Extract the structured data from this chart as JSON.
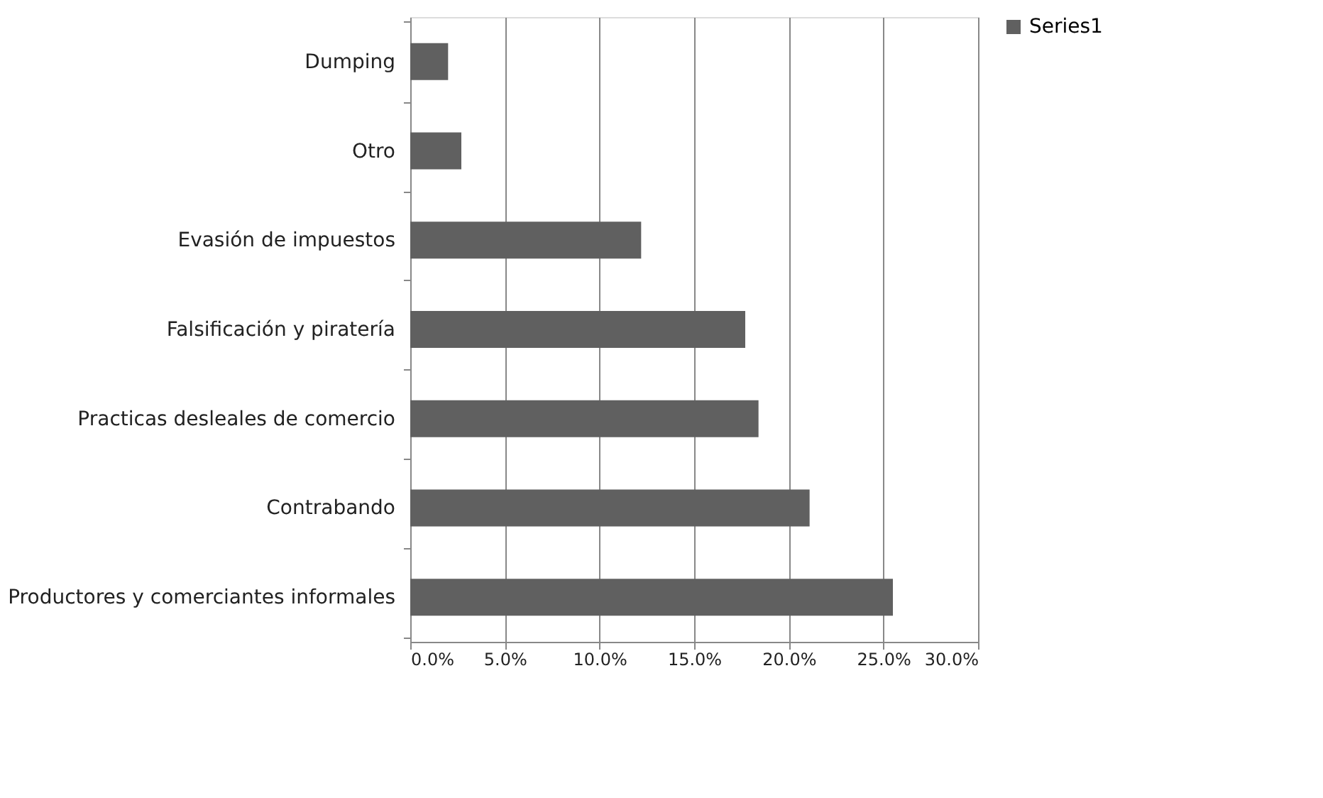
{
  "chart_data": {
    "type": "bar",
    "orientation": "horizontal",
    "categories": [
      "Dumping",
      "Otro",
      "Evasión de impuestos",
      "Falsificación y piratería",
      "Practicas desleales de comercio",
      "Contrabando",
      "Productores y comerciantes informales"
    ],
    "series": [
      {
        "name": "Series1",
        "color": "#606060",
        "values": [
          2.0,
          2.7,
          12.2,
          17.7,
          18.4,
          21.1,
          25.5
        ]
      }
    ],
    "xlim": [
      0,
      30
    ],
    "xticks": [
      {
        "value": 0,
        "label": "0.0%"
      },
      {
        "value": 5,
        "label": "5.0%"
      },
      {
        "value": 10,
        "label": "10.0%"
      },
      {
        "value": 15,
        "label": "15.0%"
      },
      {
        "value": 20,
        "label": "20.0%"
      },
      {
        "value": 25,
        "label": "25.0%"
      },
      {
        "value": 30,
        "label": "30.0%"
      }
    ],
    "grid": "x",
    "legend": "right"
  }
}
